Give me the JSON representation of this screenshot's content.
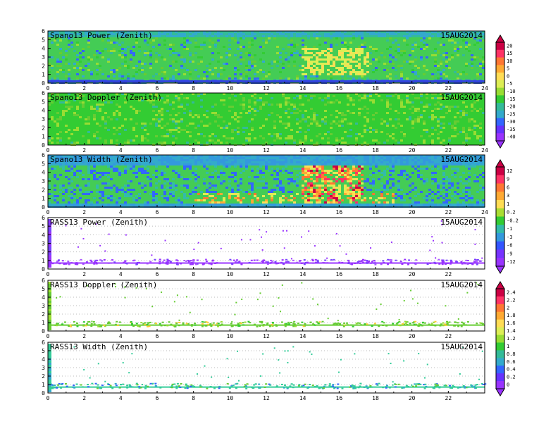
{
  "chart_data": [
    {
      "type": "heatmap",
      "title": "Spano13 Power (Zenith)",
      "date": "15AUG2014",
      "xlim": [
        0,
        24
      ],
      "ylim": [
        0,
        6
      ],
      "x_ticks": [
        "0",
        "2",
        "4",
        "6",
        "8",
        "10",
        "12",
        "14",
        "16",
        "18",
        "20",
        "22",
        "24"
      ],
      "y_ticks": [
        "0",
        "1",
        "2",
        "3",
        "4",
        "5",
        "6"
      ],
      "colorbar": [
        "20",
        "15",
        "10",
        "5",
        "0",
        "-5",
        "-10",
        "-15",
        "-20",
        "-25",
        "-30",
        "-35",
        "-40"
      ]
    },
    {
      "type": "heatmap",
      "title": "Spano13 Doppler (Zenith)",
      "date": "15AUG2014",
      "xlim": [
        0,
        24
      ],
      "ylim": [
        0,
        6
      ],
      "x_ticks": [
        "0",
        "2",
        "4",
        "6",
        "8",
        "10",
        "12",
        "14",
        "16",
        "18",
        "20",
        "22",
        "24"
      ],
      "y_ticks": [
        "0",
        "1",
        "2",
        "3",
        "4",
        "5",
        "6"
      ]
    },
    {
      "type": "heatmap",
      "title": "Spano13 Width (Zenith)",
      "date": "15AUG2014",
      "xlim": [
        0,
        24
      ],
      "ylim": [
        0,
        6
      ],
      "x_ticks": [
        "0",
        "2",
        "4",
        "6",
        "8",
        "10",
        "12",
        "14",
        "16",
        "18",
        "20",
        "22",
        "24"
      ],
      "y_ticks": [
        "0",
        "1",
        "2",
        "3",
        "4",
        "5",
        "6"
      ],
      "colorbar": [
        "12",
        "9",
        "6",
        "3",
        "1",
        "0.2",
        "-0.2",
        "-1",
        "-3",
        "-6",
        "-9",
        "-12"
      ]
    },
    {
      "type": "heatmap",
      "title": "RASS13 Power (Zenith)",
      "date": "15AUG2014",
      "xlim": [
        0,
        24
      ],
      "ylim": [
        0,
        6
      ],
      "x_ticks": [
        "0",
        "2",
        "4",
        "6",
        "8",
        "10",
        "12",
        "14",
        "16",
        "18",
        "20",
        "22"
      ],
      "y_ticks": [
        "0",
        "1",
        "2",
        "3",
        "4",
        "5",
        "6"
      ]
    },
    {
      "type": "heatmap",
      "title": "RASS13 Doppler (Zenith)",
      "date": "15AUG2014",
      "xlim": [
        0,
        24
      ],
      "ylim": [
        0,
        6
      ],
      "x_ticks": [
        "0",
        "2",
        "4",
        "6",
        "8",
        "10",
        "12",
        "14",
        "16",
        "18",
        "20",
        "22"
      ],
      "y_ticks": [
        "0",
        "1",
        "2",
        "3",
        "4",
        "5",
        "6"
      ],
      "colorbar": [
        "2.4",
        "2.2",
        "2",
        "1.8",
        "1.6",
        "1.4",
        "1.2",
        "1",
        "0.8",
        "0.6",
        "0.4",
        "0.2",
        "0"
      ]
    },
    {
      "type": "heatmap",
      "title": "RASS13 Width (Zenith)",
      "date": "15AUG2014",
      "xlim": [
        0,
        24
      ],
      "ylim": [
        0,
        6
      ],
      "x_ticks": [
        "0",
        "2",
        "4",
        "6",
        "8",
        "10",
        "12",
        "14",
        "16",
        "18",
        "20",
        "22"
      ],
      "y_ticks": [
        "0",
        "1",
        "2",
        "3",
        "4",
        "5",
        "6"
      ]
    }
  ],
  "colors": {
    "spano_background": "#33cc33",
    "rass_power": "#9933ff",
    "rass_doppler": "#66cc33",
    "rass_width": "#33cc99",
    "colorbar_power": [
      "#cc0044",
      "#ff3366",
      "#ff7733",
      "#ffaa33",
      "#ffdd55",
      "#ddee55",
      "#99dd33",
      "#33cc33",
      "#33bb99",
      "#33aacc",
      "#3366ff",
      "#6633ff",
      "#9933ff"
    ],
    "colorbar_width": [
      "#cc0044",
      "#ff3366",
      "#ff7733",
      "#ffaa33",
      "#ffdd55",
      "#aadd33",
      "#33cc33",
      "#33bbaa",
      "#3399dd",
      "#3355ff",
      "#7733ff",
      "#9933ff"
    ]
  }
}
